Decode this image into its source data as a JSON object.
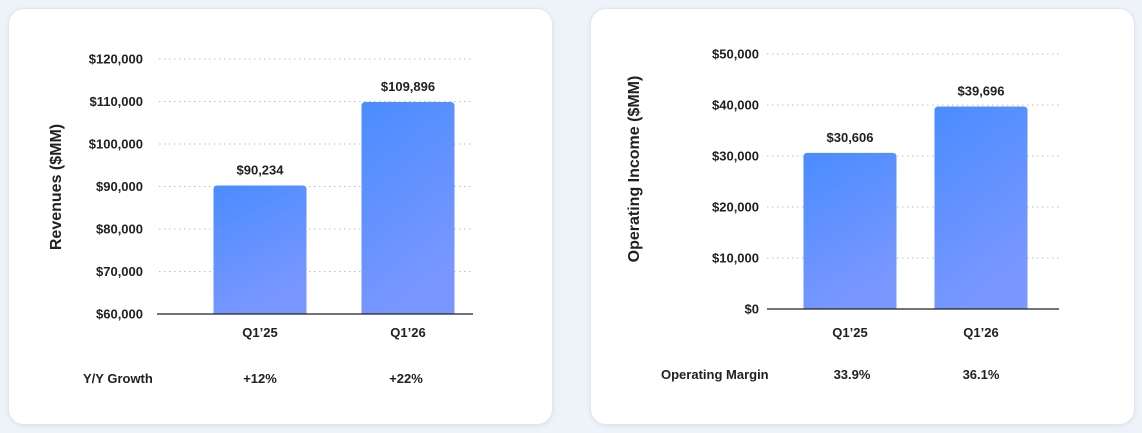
{
  "colors": {
    "bar_top": "#4a8cff",
    "bar_bottom": "#7a97ff",
    "card_bg": "#ffffff",
    "page_bg": "#eef3f9"
  },
  "chart_data": [
    {
      "type": "bar",
      "categories": [
        "Q1’25",
        "Q1’26"
      ],
      "values": [
        90234,
        109896
      ],
      "data_labels": [
        "$90,234",
        "$109,896"
      ],
      "ylabel": "Revenues ($MM)",
      "ylim": [
        60000,
        120000
      ],
      "y_ticks": [
        60000,
        70000,
        80000,
        90000,
        100000,
        110000,
        120000
      ],
      "y_tick_labels": [
        "$60,000",
        "$70,000",
        "$80,000",
        "$90,000",
        "$100,000",
        "$110,000",
        "$120,000"
      ],
      "grid": true,
      "metric": {
        "label": "Y/Y Growth",
        "values": [
          "+12%",
          "+22%"
        ]
      }
    },
    {
      "type": "bar",
      "categories": [
        "Q1’25",
        "Q1’26"
      ],
      "values": [
        30606,
        39696
      ],
      "data_labels": [
        "$30,606",
        "$39,696"
      ],
      "ylabel": "Operating Income ($MM)",
      "ylim": [
        0,
        50000
      ],
      "y_ticks": [
        0,
        10000,
        20000,
        30000,
        40000,
        50000
      ],
      "y_tick_labels": [
        "$0",
        "$10,000",
        "$20,000",
        "$30,000",
        "$40,000",
        "$50,000"
      ],
      "grid": true,
      "metric": {
        "label": "Operating Margin",
        "values": [
          "33.9%",
          "36.1%"
        ]
      }
    }
  ]
}
